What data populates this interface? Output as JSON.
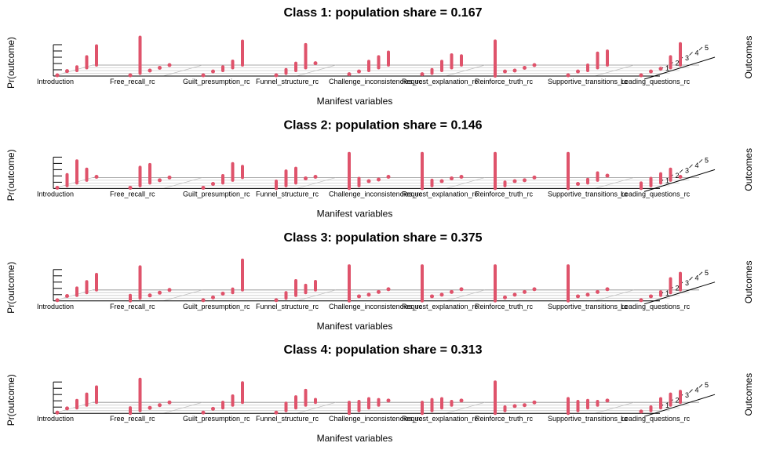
{
  "page": {
    "background": "#ffffff"
  },
  "chart_data": [
    {
      "type": "bar",
      "title": "Class 1: population share = 0.167",
      "xlabel": "Manifest variables",
      "ylabel": "Pr(outcome)",
      "zlabel": "Outcomes",
      "categories": [
        "Introduction",
        "Free_recall_rc",
        "Guilt_presumption_rc",
        "Funnel_structure_rc",
        "Challenge_inconsistencies_rc",
        "Request_explanation_rc",
        "Reinforce_truth_rc",
        "Supportive_transitions_rc",
        "Leading_questions_rc"
      ],
      "outcome_levels": [
        "1",
        "2",
        "3",
        "4",
        "5"
      ],
      "values": [
        [
          0.02,
          0.06,
          0.1,
          0.3,
          0.52
        ],
        [
          0.02,
          0.98,
          0.0,
          0.0,
          0.0
        ],
        [
          0.02,
          0.05,
          0.1,
          0.18,
          0.65
        ],
        [
          0.02,
          0.1,
          0.2,
          0.63,
          0.05
        ],
        [
          0.05,
          0.05,
          0.25,
          0.3,
          0.35
        ],
        [
          0.05,
          0.1,
          0.25,
          0.35,
          0.25
        ],
        [
          0.95,
          0.05,
          0.0,
          0.0,
          0.0
        ],
        [
          0.02,
          0.05,
          0.15,
          0.4,
          0.38
        ],
        [
          0.02,
          0.05,
          0.05,
          0.3,
          0.58
        ]
      ],
      "color": "#DF536B"
    },
    {
      "type": "bar",
      "title": "Class 2: population share = 0.146",
      "xlabel": "Manifest variables",
      "ylabel": "Pr(outcome)",
      "zlabel": "Outcomes",
      "categories": [
        "Introduction",
        "Free_recall_rc",
        "Guilt_presumption_rc",
        "Funnel_structure_rc",
        "Challenge_inconsistencies_rc",
        "Request_explanation_rc",
        "Reinforce_truth_rc",
        "Supportive_transitions_rc",
        "Leading_questions_rc"
      ],
      "outcome_levels": [
        "1",
        "2",
        "3",
        "4",
        "5"
      ],
      "values": [
        [
          0.02,
          0.3,
          0.6,
          0.3,
          0.02
        ],
        [
          0.02,
          0.5,
          0.5,
          0.0,
          0.0
        ],
        [
          0.02,
          0.05,
          0.2,
          0.45,
          0.3
        ],
        [
          0.2,
          0.4,
          0.4,
          0.05,
          0.02
        ],
        [
          0.95,
          0.2,
          0.05,
          0.02,
          0.02
        ],
        [
          0.95,
          0.15,
          0.05,
          0.05,
          0.02
        ],
        [
          0.95,
          0.1,
          0.05,
          0.0,
          0.0
        ],
        [
          0.95,
          0.05,
          0.1,
          0.2,
          0.05
        ],
        [
          0.15,
          0.2,
          0.25,
          0.3,
          0.02
        ]
      ],
      "color": "#DF536B"
    },
    {
      "type": "bar",
      "title": "Class 3: population share = 0.375",
      "xlabel": "Manifest variables",
      "ylabel": "Pr(outcome)",
      "zlabel": "Outcomes",
      "categories": [
        "Introduction",
        "Free_recall_rc",
        "Guilt_presumption_rc",
        "Funnel_structure_rc",
        "Challenge_inconsistencies_rc",
        "Request_explanation_rc",
        "Reinforce_truth_rc",
        "Supportive_transitions_rc",
        "Leading_questions_rc"
      ],
      "outcome_levels": [
        "1",
        "2",
        "3",
        "4",
        "5"
      ],
      "values": [
        [
          0.02,
          0.06,
          0.2,
          0.3,
          0.42
        ],
        [
          0.15,
          0.85,
          0.0,
          0.0,
          0.0
        ],
        [
          0.02,
          0.02,
          0.05,
          0.1,
          0.81
        ],
        [
          0.02,
          0.15,
          0.4,
          0.2,
          0.23
        ],
        [
          0.95,
          0.05,
          0.02,
          0.02,
          0.02
        ],
        [
          0.95,
          0.05,
          0.02,
          0.02,
          0.02
        ],
        [
          0.95,
          0.02,
          0.02,
          0.02,
          0.02
        ],
        [
          0.95,
          0.05,
          0.02,
          0.02,
          0.02
        ],
        [
          0.02,
          0.05,
          0.1,
          0.38,
          0.45
        ]
      ],
      "color": "#DF536B"
    },
    {
      "type": "bar",
      "title": "Class 4: population share = 0.313",
      "xlabel": "Manifest variables",
      "ylabel": "Pr(outcome)",
      "zlabel": "Outcomes",
      "categories": [
        "Introduction",
        "Free_recall_rc",
        "Guilt_presumption_rc",
        "Funnel_structure_rc",
        "Challenge_inconsistencies_rc",
        "Request_explanation_rc",
        "Reinforce_truth_rc",
        "Supportive_transitions_rc",
        "Leading_questions_rc"
      ],
      "outcome_levels": [
        "1",
        "2",
        "3",
        "4",
        "5"
      ],
      "values": [
        [
          0.02,
          0.06,
          0.2,
          0.3,
          0.42
        ],
        [
          0.15,
          0.85,
          0.0,
          0.0,
          0.0
        ],
        [
          0.02,
          0.05,
          0.15,
          0.25,
          0.53
        ],
        [
          0.02,
          0.2,
          0.3,
          0.4,
          0.08
        ],
        [
          0.3,
          0.25,
          0.25,
          0.15,
          0.05
        ],
        [
          0.3,
          0.3,
          0.25,
          0.1,
          0.05
        ],
        [
          0.85,
          0.1,
          0.05,
          0.0,
          0.0
        ],
        [
          0.4,
          0.25,
          0.2,
          0.1,
          0.05
        ],
        [
          0.05,
          0.1,
          0.25,
          0.3,
          0.3
        ]
      ],
      "color": "#DF536B"
    }
  ]
}
